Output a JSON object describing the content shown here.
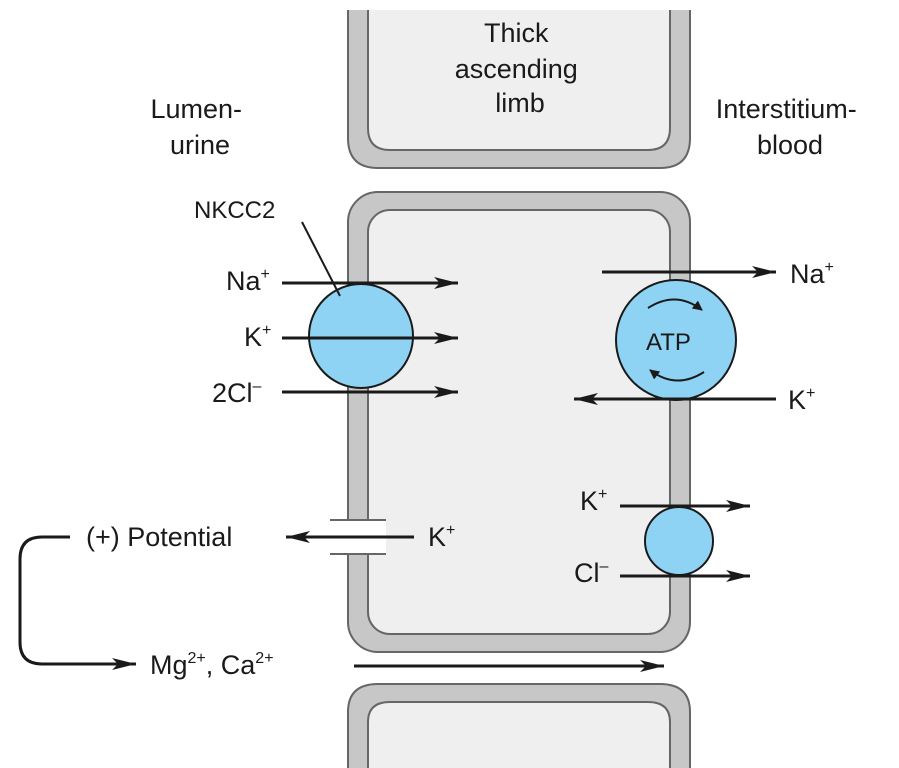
{
  "labels": {
    "top_cell": [
      "Thick",
      "ascending",
      "limb"
    ],
    "lumen": [
      "Lumen-",
      "urine"
    ],
    "interstitium": [
      "Interstitium-",
      "blood"
    ],
    "nkcc2": "NKCC2",
    "atp": "ATP",
    "potential": "(+) Potential",
    "mg_ca": {
      "mg": "Mg",
      "mg_sup": "2+",
      "sep": ", Ca",
      "ca_sup": "2+"
    }
  },
  "ions": {
    "na_left": {
      "base": "Na",
      "sup": "+"
    },
    "k_left": {
      "base": "K",
      "sup": "+"
    },
    "cl2_left": {
      "base": "2Cl",
      "sup": "–"
    },
    "k_channel": {
      "base": "K",
      "sup": "+"
    },
    "na_right": {
      "base": "Na",
      "sup": "+"
    },
    "k_right": {
      "base": "K",
      "sup": "+"
    },
    "k_kcc": {
      "base": "K",
      "sup": "+"
    },
    "cl_kcc": {
      "base": "Cl",
      "sup": "–"
    }
  },
  "colors": {
    "cell_fill": "#efefef",
    "cell_wall": "#c7c7c7",
    "wall_stroke": "#666666",
    "transporter": "#8fd3f4",
    "ink": "#1a1a1a"
  }
}
